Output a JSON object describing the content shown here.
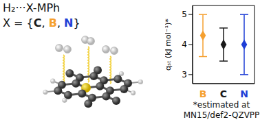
{
  "chart_data": {
    "type": "scatter",
    "annotations": [
      "H₂···X-MPh",
      "X = {C, B, N}",
      "*estimated at",
      "MN15/def2-QZVPP"
    ],
    "ylabel": "qₛₜ (kJ mol⁻¹)*",
    "categories": [
      "B",
      "C",
      "N"
    ],
    "values": [
      4.3,
      4.0,
      4.0
    ],
    "errors": [
      0.7,
      0.55,
      1.0
    ],
    "colors": [
      "#f5a030",
      "#1a1a1a",
      "#1f3fd6"
    ],
    "marker": "diamond",
    "ylim": [
      2.7,
      5.3
    ],
    "yticks": [
      3,
      4,
      5
    ],
    "grid": false
  }
}
